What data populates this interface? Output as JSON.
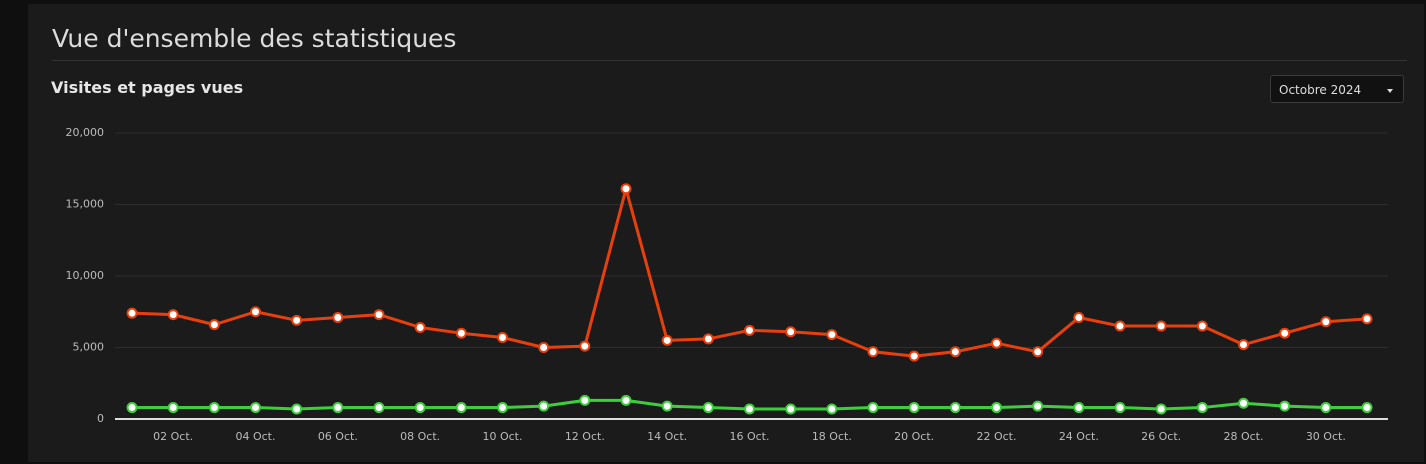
{
  "header": {
    "title": "Vue d'ensemble des statistiques",
    "subtitle": "Visites et pages vues",
    "period": "Octobre 2024"
  },
  "chart_data": {
    "type": "line",
    "categories": [
      null,
      "02 Oct.",
      null,
      "04 Oct.",
      null,
      "06 Oct.",
      null,
      "08 Oct.",
      null,
      "10 Oct.",
      null,
      "12 Oct.",
      null,
      "14 Oct.",
      null,
      "16 Oct.",
      null,
      "18 Oct.",
      null,
      "20 Oct.",
      null,
      "22 Oct.",
      null,
      "24 Oct.",
      null,
      "26 Oct.",
      null,
      "28 Oct.",
      null,
      "30 Oct.",
      null
    ],
    "series": [
      {
        "color": "#e8400c",
        "values": [
          7400,
          7300,
          6600,
          7500,
          6900,
          7100,
          7300,
          6400,
          6000,
          5700,
          5000,
          5100,
          16100,
          5500,
          5600,
          6200,
          6100,
          5900,
          4700,
          4400,
          4700,
          5300,
          4700,
          7100,
          6500,
          6500,
          6500,
          5200,
          6000,
          6800,
          7000
        ]
      },
      {
        "color": "#3ccf3c",
        "values": [
          800,
          800,
          800,
          800,
          700,
          800,
          800,
          800,
          800,
          800,
          900,
          1300,
          1300,
          900,
          800,
          700,
          700,
          700,
          800,
          800,
          800,
          800,
          900,
          800,
          800,
          700,
          800,
          1100,
          900,
          800,
          800
        ]
      }
    ],
    "ylim": [
      0,
      20000
    ],
    "yticks": [
      0,
      {
        "value": 5000,
        "label": "5,000"
      },
      {
        "value": 10000,
        "label": "10,000"
      },
      {
        "value": 15000,
        "label": "15,000"
      },
      {
        "value": 20000,
        "label": "20,000"
      }
    ],
    "grid": true
  }
}
